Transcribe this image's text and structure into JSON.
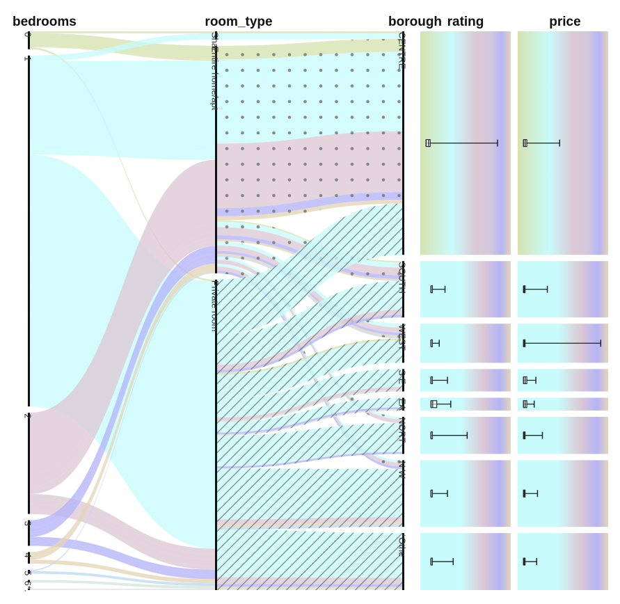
{
  "chart_data": {
    "type": "parallel-sets",
    "dimensions": [
      {
        "key": "bedrooms",
        "title": "bedrooms",
        "title_color": "#111111",
        "categories": [
          "0",
          "1",
          "2",
          "3",
          "4",
          "5",
          "6*",
          "."
        ]
      },
      {
        "key": "room_type",
        "title": "room_type",
        "title_color": "#111111",
        "categories": [
          "Shar",
          "Entire home/apt",
          "Private room"
        ]
      },
      {
        "key": "borough",
        "title": "borough",
        "title_color": "#111111",
        "categories": [
          "CENTRE",
          "SOUTH",
          "WEST",
          "S E",
          "EA",
          "NORT",
          "N W",
          "*Othe"
        ]
      }
    ],
    "extra_columns": [
      {
        "key": "rating",
        "title": "rating",
        "title_color": "#111111"
      },
      {
        "key": "price",
        "title": "price",
        "title_color": "#1a1acc"
      }
    ],
    "bedroom_counts": {
      "0": 28,
      "1": 548,
      "2": 158,
      "3": 40,
      "4": 18,
      "5": 6,
      "6*": 4,
      ".": 2
    },
    "bedroom_colors": {
      "0": "#d6e3b0",
      "1": "#c8fbfb",
      "2": "#dcc8d4",
      "3": "#b4b4f8",
      "4": "#e6d4b4",
      "5": "#bcd9f4",
      "6*": "#d2e4dc",
      ".": "#e2e2e2"
    },
    "room_type_patterns": {
      "Shar": "none",
      "Entire home/apt": "dots",
      "Private room": "hatch"
    },
    "flows": [
      {
        "bedrooms": "0",
        "room_type": "Shar",
        "borough": "CENTRE",
        "value": 3
      },
      {
        "bedrooms": "0",
        "room_type": "Entire home/apt",
        "borough": "CENTRE",
        "value": 20
      },
      {
        "bedrooms": "0",
        "room_type": "Entire home/apt",
        "borough": "SOUTH",
        "value": 2
      },
      {
        "bedrooms": "0",
        "room_type": "Private room",
        "borough": "WEST",
        "value": 3
      },
      {
        "bedrooms": "1",
        "room_type": "Shar",
        "borough": "CENTRE",
        "value": 9
      },
      {
        "bedrooms": "1",
        "room_type": "Entire home/apt",
        "borough": "CENTRE",
        "value": 124
      },
      {
        "bedrooms": "1",
        "room_type": "Entire home/apt",
        "borough": "SOUTH",
        "value": 8
      },
      {
        "bedrooms": "1",
        "room_type": "Entire home/apt",
        "borough": "WEST",
        "value": 6
      },
      {
        "bedrooms": "1",
        "room_type": "Entire home/apt",
        "borough": "NORT",
        "value": 4
      },
      {
        "bedrooms": "1",
        "room_type": "Entire home/apt",
        "borough": "N W",
        "value": 4
      },
      {
        "bedrooms": "1",
        "room_type": "Private room",
        "borough": "CENTRE",
        "value": 80
      },
      {
        "bedrooms": "1",
        "room_type": "Private room",
        "borough": "SOUTH",
        "value": 45
      },
      {
        "bedrooms": "1",
        "room_type": "Private room",
        "borough": "WEST",
        "value": 35
      },
      {
        "bedrooms": "1",
        "room_type": "Private room",
        "borough": "S E",
        "value": 28
      },
      {
        "bedrooms": "1",
        "room_type": "Private room",
        "borough": "EA",
        "value": 15
      },
      {
        "bedrooms": "1",
        "room_type": "Private room",
        "borough": "NORT",
        "value": 45
      },
      {
        "bedrooms": "1",
        "room_type": "Private room",
        "borough": "N W",
        "value": 75
      },
      {
        "bedrooms": "1",
        "room_type": "Private room",
        "borough": "*Othe",
        "value": 70
      },
      {
        "bedrooms": "2",
        "room_type": "Entire home/apt",
        "borough": "CENTRE",
        "value": 95
      },
      {
        "bedrooms": "2",
        "room_type": "Entire home/apt",
        "borough": "SOUTH",
        "value": 12
      },
      {
        "bedrooms": "2",
        "room_type": "Entire home/apt",
        "borough": "WEST",
        "value": 8
      },
      {
        "bedrooms": "2",
        "room_type": "Entire home/apt",
        "borough": "NORT",
        "value": 6
      },
      {
        "bedrooms": "2",
        "room_type": "Entire home/apt",
        "borough": "N W",
        "value": 6
      },
      {
        "bedrooms": "2",
        "room_type": "Private room",
        "borough": "SOUTH",
        "value": 8
      },
      {
        "bedrooms": "2",
        "room_type": "Private room",
        "borough": "N W",
        "value": 8
      },
      {
        "bedrooms": "2",
        "room_type": "Private room",
        "borough": "*Othe",
        "value": 10
      },
      {
        "bedrooms": "2",
        "room_type": "Private room",
        "borough": "S E",
        "value": 5
      },
      {
        "bedrooms": "3",
        "room_type": "Entire home/apt",
        "borough": "CENTRE",
        "value": 12
      },
      {
        "bedrooms": "3",
        "room_type": "Entire home/apt",
        "borough": "SOUTH",
        "value": 6
      },
      {
        "bedrooms": "3",
        "room_type": "Entire home/apt",
        "borough": "WEST",
        "value": 4
      },
      {
        "bedrooms": "3",
        "room_type": "Entire home/apt",
        "borough": "N W",
        "value": 4
      },
      {
        "bedrooms": "3",
        "room_type": "Private room",
        "borough": "SOUTH",
        "value": 4
      },
      {
        "bedrooms": "3",
        "room_type": "Private room",
        "borough": "EA",
        "value": 3
      },
      {
        "bedrooms": "3",
        "room_type": "Private room",
        "borough": "NORT",
        "value": 3
      },
      {
        "bedrooms": "3",
        "room_type": "Private room",
        "borough": "*Othe",
        "value": 4
      },
      {
        "bedrooms": "4",
        "room_type": "Entire home/apt",
        "borough": "CENTRE",
        "value": 6
      },
      {
        "bedrooms": "4",
        "room_type": "Entire home/apt",
        "borough": "SOUTH",
        "value": 3
      },
      {
        "bedrooms": "4",
        "room_type": "Entire home/apt",
        "borough": "WEST",
        "value": 3
      },
      {
        "bedrooms": "4",
        "room_type": "Private room",
        "borough": "N W",
        "value": 3
      },
      {
        "bedrooms": "4",
        "room_type": "Private room",
        "borough": "*Othe",
        "value": 3
      },
      {
        "bedrooms": "5",
        "room_type": "Entire home/apt",
        "borough": "WEST",
        "value": 2
      },
      {
        "bedrooms": "5",
        "room_type": "Private room",
        "borough": "N W",
        "value": 4
      },
      {
        "bedrooms": "6*",
        "room_type": "Private room",
        "borough": "*Othe",
        "value": 2
      },
      {
        "bedrooms": "6*",
        "room_type": "Private room",
        "borough": "S E",
        "value": 2
      },
      {
        "bedrooms": ".",
        "room_type": "Private room",
        "borough": "EA",
        "value": 2
      }
    ],
    "boxplots": {
      "rating": {
        "CENTRE": {
          "min": 0.02,
          "q1": 0.02,
          "median": 0.05,
          "q3": 0.07,
          "max": 0.89
        },
        "SOUTH": {
          "min": 0.08,
          "q1": 0.08,
          "median": 0.08,
          "q3": 0.08,
          "max": 0.25
        },
        "WEST": {
          "min": 0.08,
          "q1": 0.08,
          "median": 0.08,
          "q3": 0.08,
          "max": 0.18
        },
        "S E": {
          "min": 0.08,
          "q1": 0.08,
          "median": 0.08,
          "q3": 0.08,
          "max": 0.28
        },
        "EA": {
          "min": 0.08,
          "q1": 0.08,
          "median": 0.1,
          "q3": 0.15,
          "max": 0.32
        },
        "NORT": {
          "min": 0.08,
          "q1": 0.08,
          "median": 0.08,
          "q3": 0.08,
          "max": 0.52
        },
        "N W": {
          "min": 0.08,
          "q1": 0.08,
          "median": 0.08,
          "q3": 0.08,
          "max": 0.28
        },
        "*Othe": {
          "min": 0.08,
          "q1": 0.08,
          "median": 0.08,
          "q3": 0.08,
          "max": 0.35
        }
      },
      "price": {
        "CENTRE": {
          "min": 0.02,
          "q1": 0.02,
          "median": 0.04,
          "q3": 0.06,
          "max": 0.46
        },
        "SOUTH": {
          "min": 0.02,
          "q1": 0.02,
          "median": 0.03,
          "q3": 0.04,
          "max": 0.31
        },
        "WEST": {
          "min": 0.02,
          "q1": 0.02,
          "median": 0.03,
          "q3": 0.04,
          "max": 0.96
        },
        "S E": {
          "min": 0.02,
          "q1": 0.02,
          "median": 0.04,
          "q3": 0.06,
          "max": 0.17
        },
        "EA": {
          "min": 0.02,
          "q1": 0.02,
          "median": 0.04,
          "q3": 0.06,
          "max": 0.15
        },
        "NORT": {
          "min": 0.02,
          "q1": 0.02,
          "median": 0.03,
          "q3": 0.04,
          "max": 0.25
        },
        "N W": {
          "min": 0.02,
          "q1": 0.02,
          "median": 0.03,
          "q3": 0.04,
          "max": 0.19
        },
        "*Othe": {
          "min": 0.02,
          "q1": 0.02,
          "median": 0.03,
          "q3": 0.04,
          "max": 0.18
        }
      }
    }
  }
}
